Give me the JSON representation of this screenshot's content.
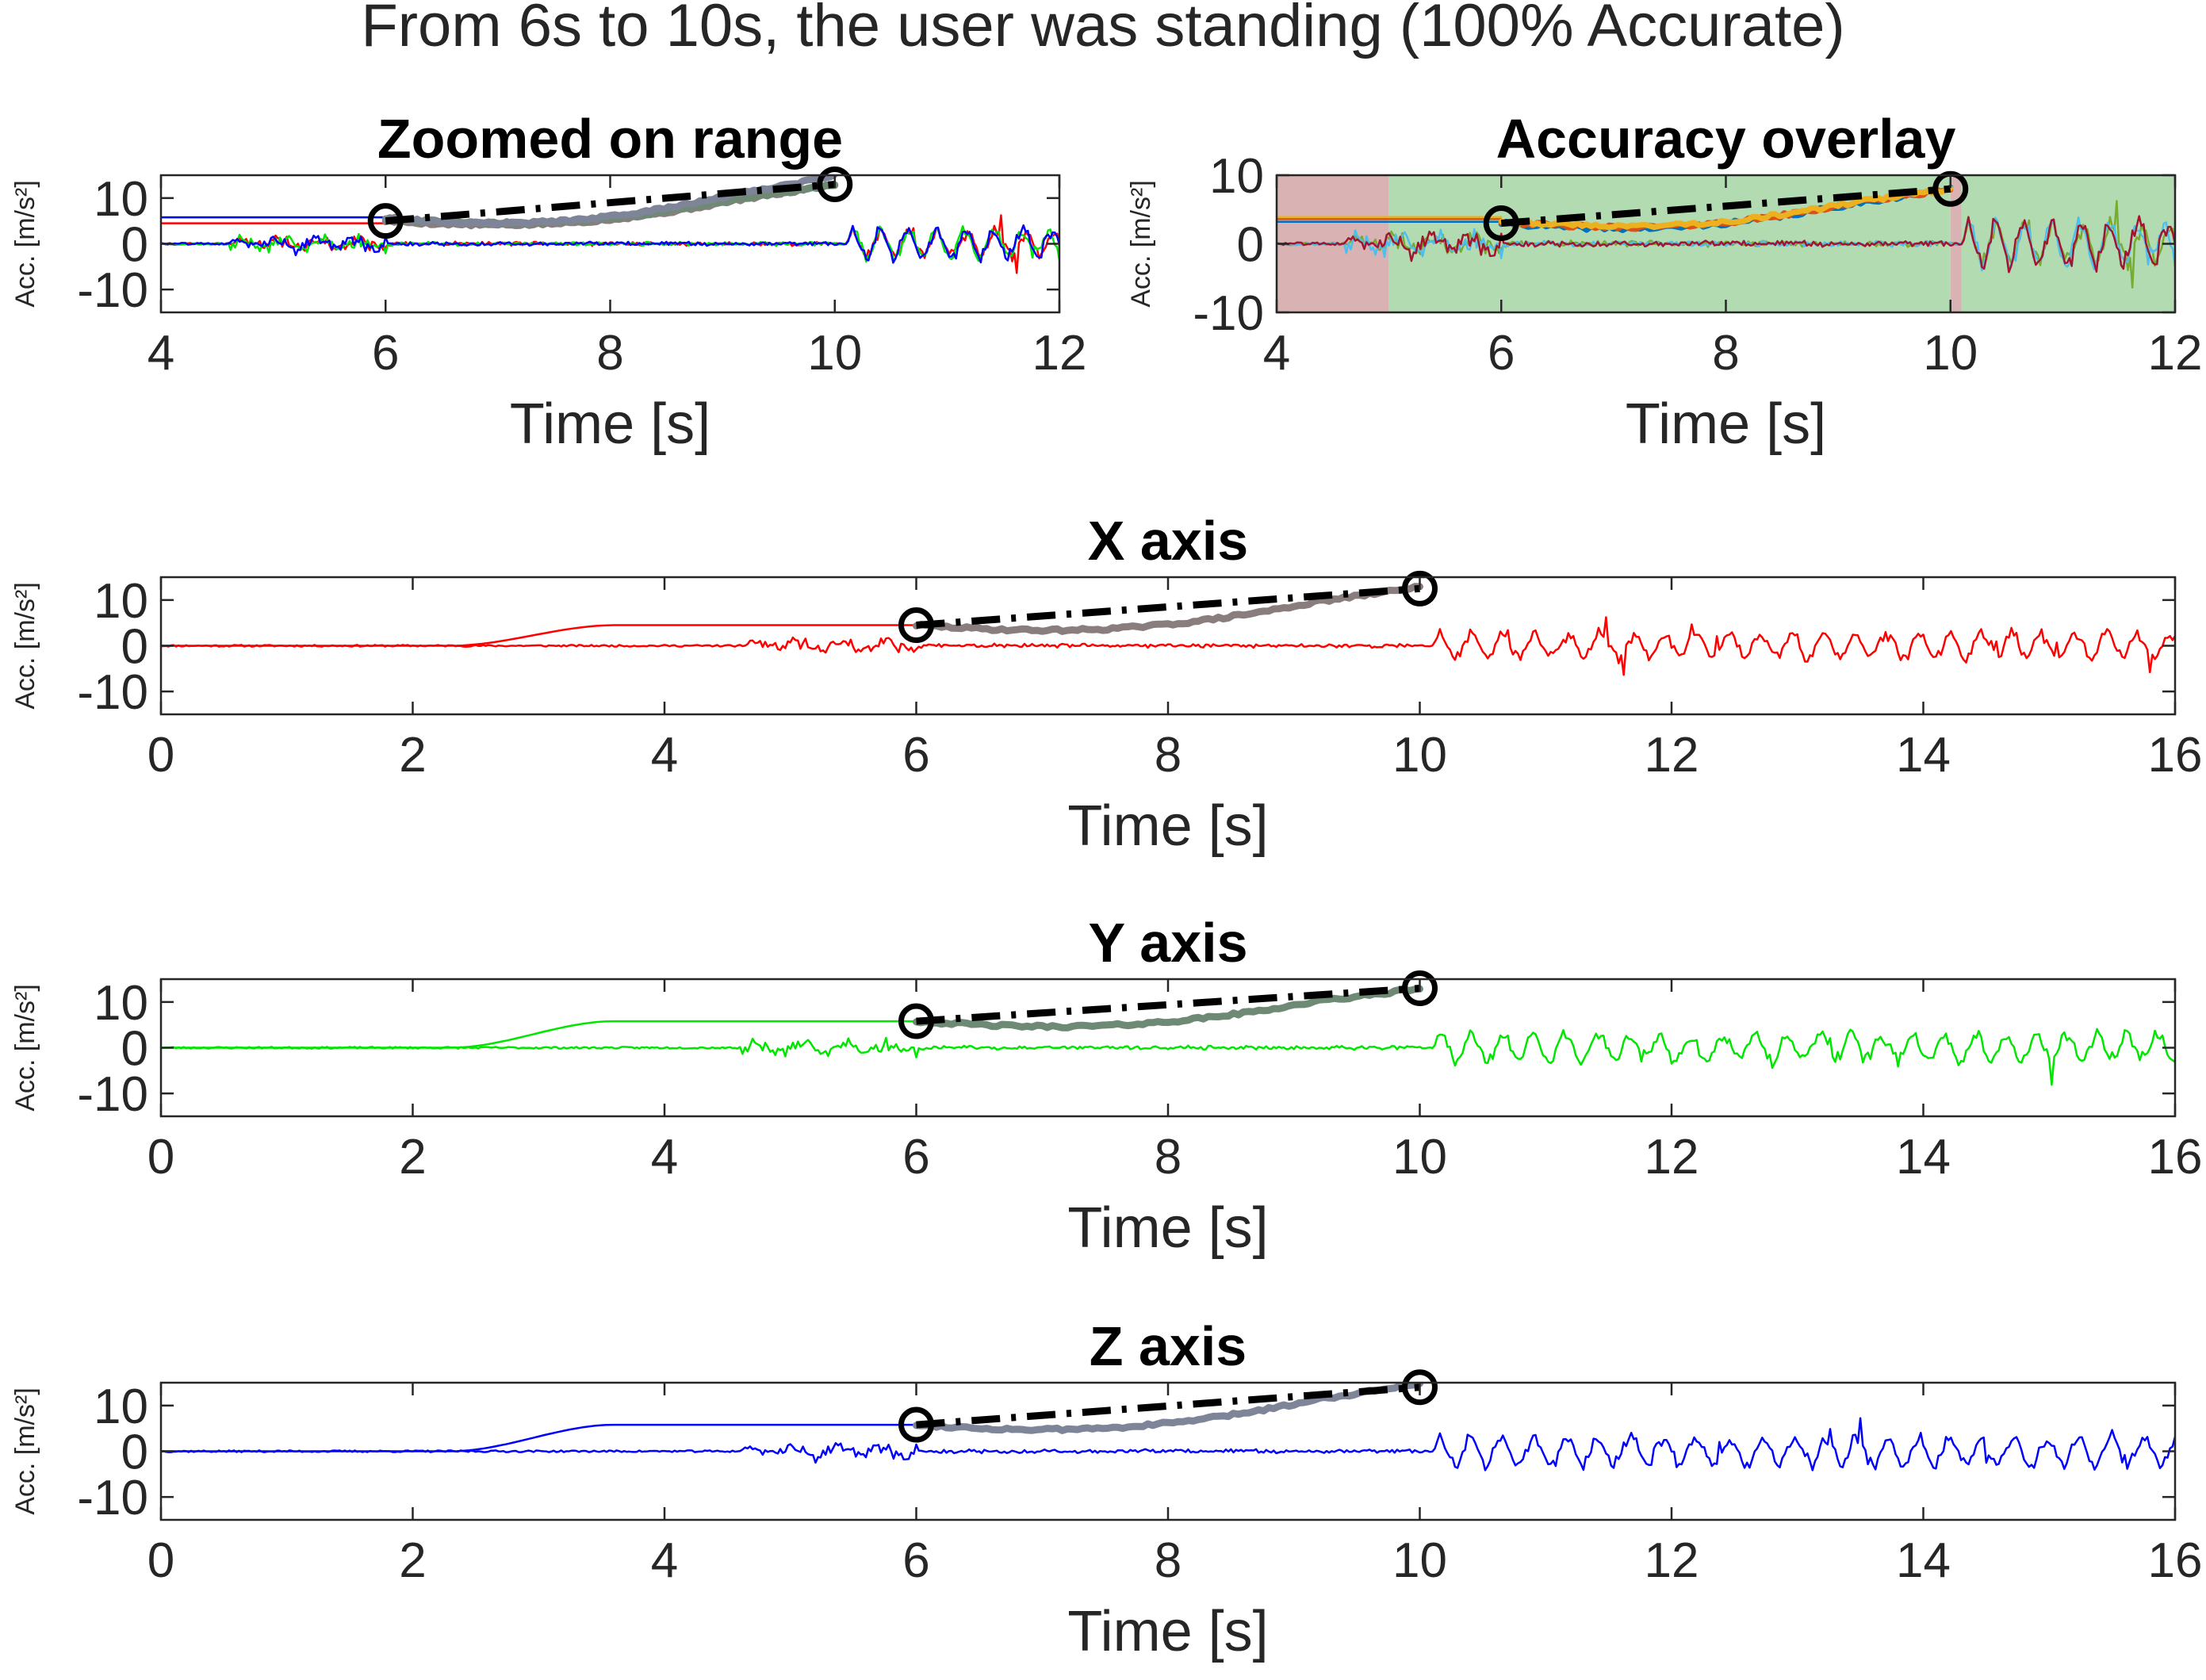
{
  "figure_title": "From 6s to 10s, the user was standing (100% Accurate)",
  "colors": {
    "x_series": "#ff0000",
    "y_series": "#00e600",
    "z_series": "#0000ff",
    "highlight_gray_blue": "#7f8598",
    "highlight_gray_green": "#6f8a74",
    "highlight_gray_red": "#8a7d7d",
    "overlay_correct": "#b2dbb2",
    "overlay_incorrect": "#d9b3b3",
    "overlay_series": [
      "#0072bd",
      "#d95319",
      "#edb120",
      "#7e2f8e",
      "#77ac30",
      "#4dbeee",
      "#a2142f"
    ],
    "marker": "#000000"
  },
  "chart_data": [
    {
      "id": "zoomed",
      "type": "line",
      "title": "Zoomed on range",
      "xlabel": "Time [s]",
      "ylabel": "Acc. [m/s²]",
      "xlim": [
        4,
        12
      ],
      "ylim": [
        -15,
        15
      ],
      "xticks": [
        "4",
        "6",
        "8",
        "10",
        "12"
      ],
      "yticks": [
        "10",
        "0",
        "-10"
      ],
      "markers": [
        {
          "x": 6,
          "y": 5
        },
        {
          "x": 10,
          "y": 13
        }
      ],
      "segment": {
        "from": [
          6,
          5
        ],
        "to": [
          10,
          13
        ],
        "style": "dash-dot"
      }
    },
    {
      "id": "overlay",
      "type": "line",
      "title": "Accuracy overlay",
      "xlabel": "Time [s]",
      "ylabel": "Acc. [m/s²]",
      "xlim": [
        4,
        12
      ],
      "ylim": [
        -10,
        10
      ],
      "xticks": [
        "4",
        "6",
        "8",
        "10",
        "12"
      ],
      "yticks": [
        "10",
        "0",
        "-10"
      ],
      "regions": [
        {
          "x0": 4,
          "x1": 5,
          "state": "incorrect"
        },
        {
          "x0": 5,
          "x1": 10,
          "state": "correct"
        },
        {
          "x0": 10,
          "x1": 10.1,
          "state": "incorrect"
        },
        {
          "x0": 10.1,
          "x1": 12,
          "state": "correct"
        }
      ],
      "markers": [
        {
          "x": 6,
          "y": 3
        },
        {
          "x": 10,
          "y": 8
        }
      ],
      "segment": {
        "from": [
          6,
          3
        ],
        "to": [
          10,
          8
        ],
        "style": "dash-dot"
      }
    },
    {
      "id": "x_axis",
      "type": "line",
      "title": "X axis",
      "xlabel": "Time [s]",
      "ylabel": "Acc. [m/s²]",
      "xlim": [
        0,
        16
      ],
      "ylim": [
        -15,
        15
      ],
      "xticks": [
        "0",
        "2",
        "4",
        "6",
        "8",
        "10",
        "12",
        "14",
        "16"
      ],
      "yticks": [
        "10",
        "0",
        "-10"
      ],
      "markers": [
        {
          "x": 6,
          "y": 4.5
        },
        {
          "x": 10,
          "y": 12.5
        }
      ],
      "segment": {
        "from": [
          6,
          4.5
        ],
        "to": [
          10,
          12.5
        ],
        "style": "dash-dot"
      }
    },
    {
      "id": "y_axis",
      "type": "line",
      "title": "Y axis",
      "xlabel": "Time [s]",
      "ylabel": "Acc. [m/s²]",
      "xlim": [
        0,
        16
      ],
      "ylim": [
        -15,
        15
      ],
      "xticks": [
        "0",
        "2",
        "4",
        "6",
        "8",
        "10",
        "12",
        "14",
        "16"
      ],
      "yticks": [
        "10",
        "0",
        "-10"
      ],
      "markers": [
        {
          "x": 6,
          "y": 5.8
        },
        {
          "x": 10,
          "y": 13
        }
      ],
      "segment": {
        "from": [
          6,
          5.8
        ],
        "to": [
          10,
          13
        ],
        "style": "dash-dot"
      }
    },
    {
      "id": "z_axis",
      "type": "line",
      "title": "Z axis",
      "xlabel": "Time [s]",
      "ylabel": "Acc. [m/s²]",
      "xlim": [
        0,
        16
      ],
      "ylim": [
        -15,
        15
      ],
      "xticks": [
        "0",
        "2",
        "4",
        "6",
        "8",
        "10",
        "12",
        "14",
        "16"
      ],
      "yticks": [
        "10",
        "0",
        "-10"
      ],
      "markers": [
        {
          "x": 6,
          "y": 5.8
        },
        {
          "x": 10,
          "y": 14
        }
      ],
      "segment": {
        "from": [
          6,
          5.8
        ],
        "to": [
          10,
          14
        ],
        "style": "dash-dot"
      }
    }
  ]
}
